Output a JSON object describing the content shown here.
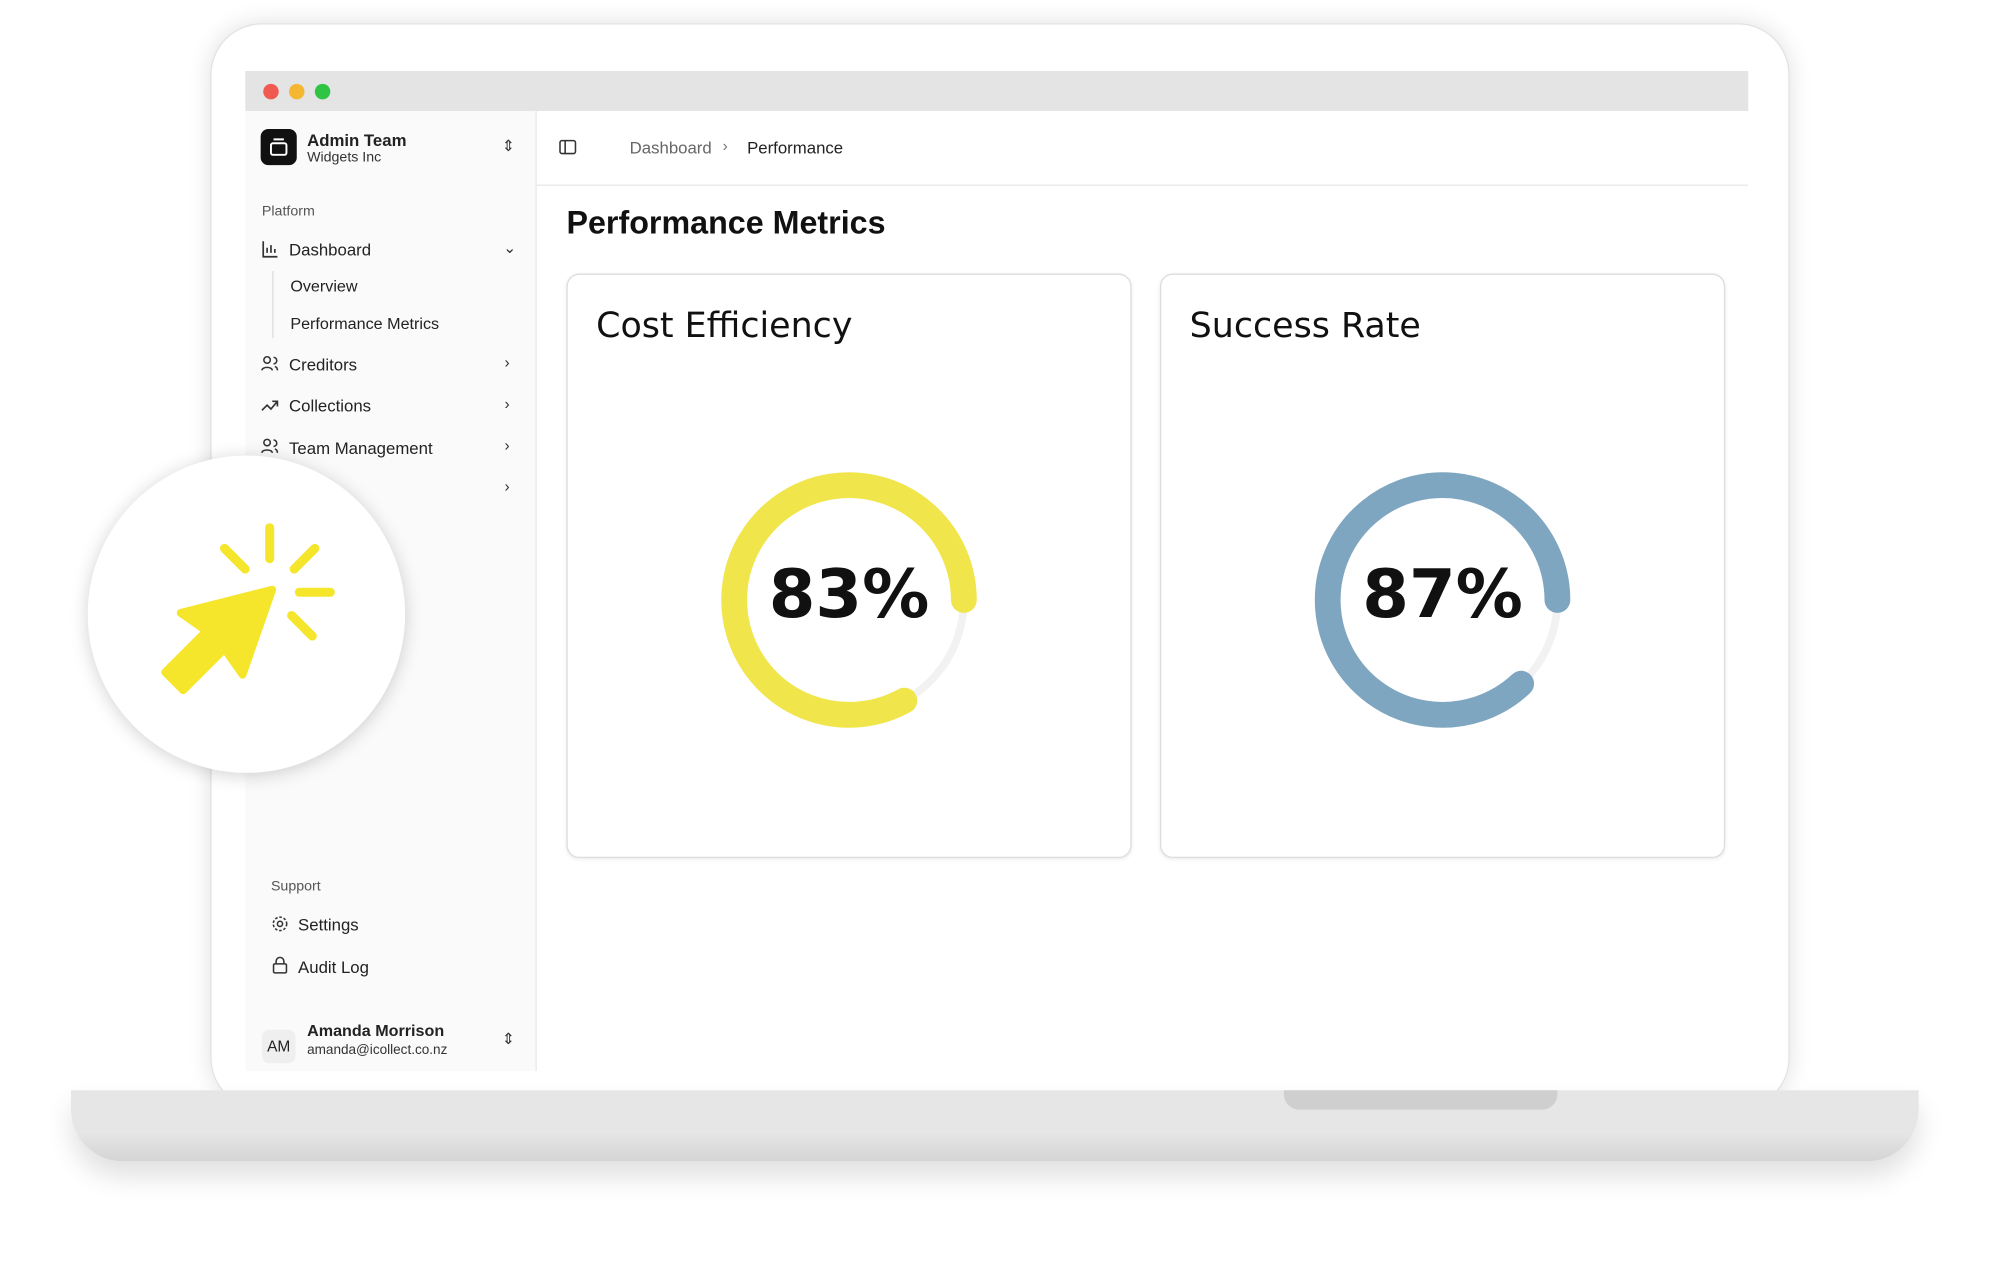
{
  "team": {
    "name": "Admin Team",
    "org": "Widgets Inc"
  },
  "sidebar": {
    "platform_label": "Platform",
    "items": [
      {
        "label": "Dashboard",
        "children": [
          "Overview",
          "Performance Metrics"
        ]
      },
      {
        "label": "Creditors"
      },
      {
        "label": "Collections"
      },
      {
        "label": "Team Management"
      }
    ],
    "support_label": "Support",
    "support_items": [
      "Settings",
      "Audit Log"
    ]
  },
  "user": {
    "initials": "AM",
    "name": "Amanda Morrison",
    "email": "amanda@icollect.co.nz"
  },
  "breadcrumb": [
    "Dashboard",
    "Performance"
  ],
  "page_title": "Performance Metrics",
  "cards": [
    {
      "title": "Cost Efficiency",
      "value": 83,
      "label": "83%",
      "color": "#f0e54a"
    },
    {
      "title": "Success Rate",
      "value": 87,
      "label": "87%",
      "color": "#7fa6c1"
    }
  ]
}
